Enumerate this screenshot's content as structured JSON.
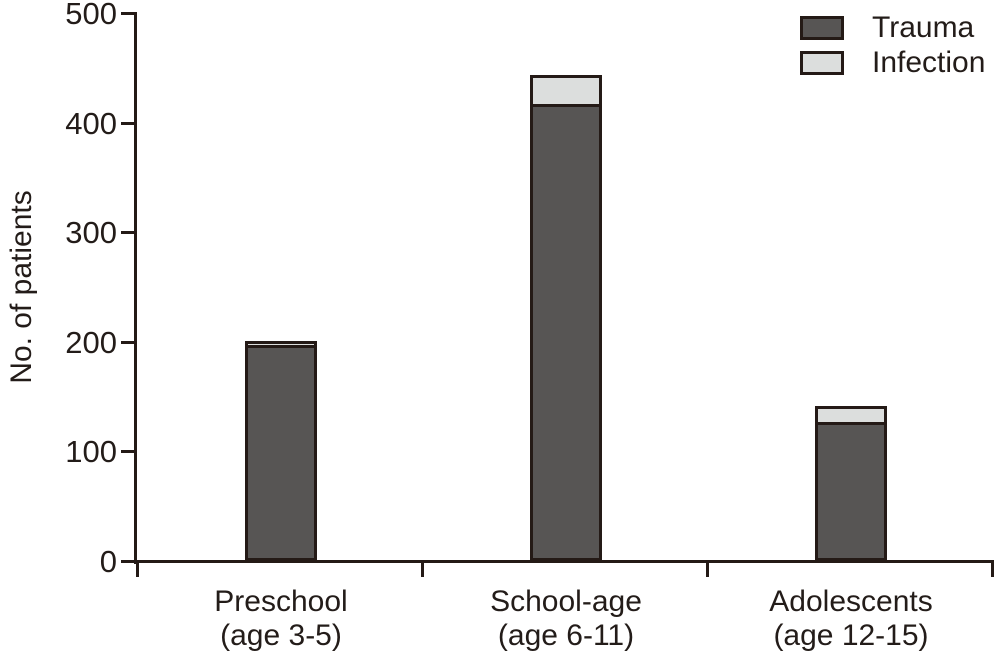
{
  "chart_data": {
    "type": "bar",
    "stacked": true,
    "title": "",
    "xlabel": "",
    "ylabel": "No. of patients",
    "ylim": [
      0,
      500
    ],
    "yticks": [
      0,
      100,
      200,
      300,
      400,
      500
    ],
    "grid": false,
    "legend_position": "top-right",
    "categories": [
      {
        "label": "Preschool",
        "sub": "(age 3-5)"
      },
      {
        "label": "School-age",
        "sub": "(age 6-11)"
      },
      {
        "label": "Adolescents",
        "sub": "(age 12-15)"
      }
    ],
    "series": [
      {
        "name": "Trauma",
        "color": "#575554",
        "values": [
          197,
          417,
          127
        ]
      },
      {
        "name": "Infection",
        "color": "#dcdedd",
        "values": [
          4,
          27,
          15
        ]
      }
    ],
    "colors": {
      "outline": "#241a16",
      "axis": "#241a16",
      "text": "#231c19",
      "background": "#ffffff"
    }
  }
}
